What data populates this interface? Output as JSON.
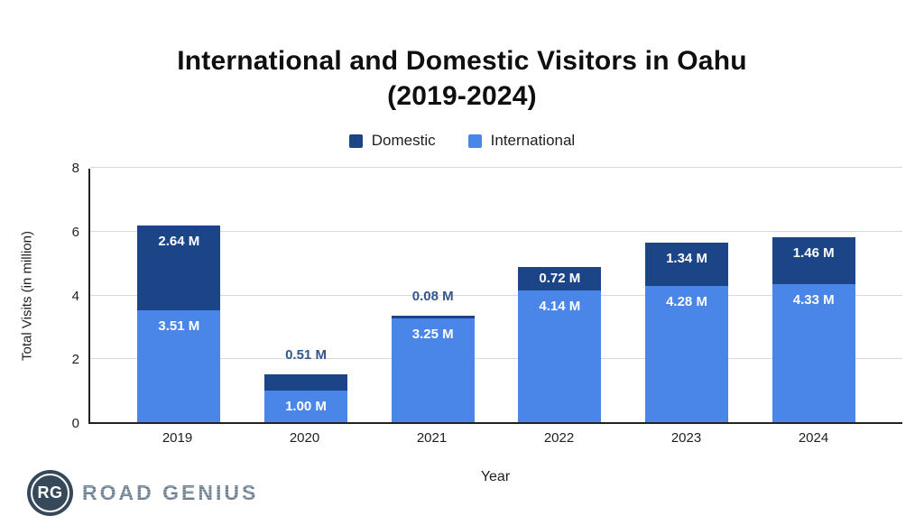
{
  "header": {
    "title_line1": "International and Domestic Visitors in Oahu",
    "title_line2": "(2019-2024)"
  },
  "axes": {
    "y_label": "Total Visits (in million)",
    "x_label": "Year"
  },
  "chart_data": {
    "type": "bar",
    "stacked": true,
    "title": "International and Domestic Visitors in Oahu (2019-2024)",
    "xlabel": "Year",
    "ylabel": "Total Visits (in million)",
    "ylim": [
      0,
      8
    ],
    "yticks": [
      0,
      2,
      4,
      6,
      8
    ],
    "grid": true,
    "legend_position": "top",
    "categories": [
      "2019",
      "2020",
      "2021",
      "2022",
      "2023",
      "2024"
    ],
    "series": [
      {
        "name": "Domestic",
        "color": "#1c4587",
        "values": [
          2.64,
          0.51,
          0.08,
          0.72,
          1.34,
          1.46
        ],
        "labels": [
          "2.64 M",
          "0.51 M",
          "0.08 M",
          "0.72 M",
          "1.34 M",
          "1.46 M"
        ],
        "label_placement": [
          "inside",
          "above",
          "above",
          "inside",
          "inside",
          "inside"
        ]
      },
      {
        "name": "International",
        "color": "#4a86e8",
        "values": [
          3.51,
          1.0,
          3.25,
          4.14,
          4.28,
          4.33
        ],
        "labels": [
          "3.51 M",
          "1.00 M",
          "3.25 M",
          "4.14 M",
          "4.28 M",
          "4.33 M"
        ],
        "label_placement": [
          "inside",
          "inside",
          "inside",
          "inside",
          "inside",
          "inside"
        ]
      }
    ],
    "inside_label_color": "#ffffff",
    "above_label_color": "#33568c",
    "gridline_color": "#d9d9d9",
    "axis_color": "#212121"
  },
  "branding": {
    "badge_text": "RG",
    "brand_name": "ROAD GENIUS",
    "badge_color": "#36495b",
    "text_color": "#76879b"
  }
}
